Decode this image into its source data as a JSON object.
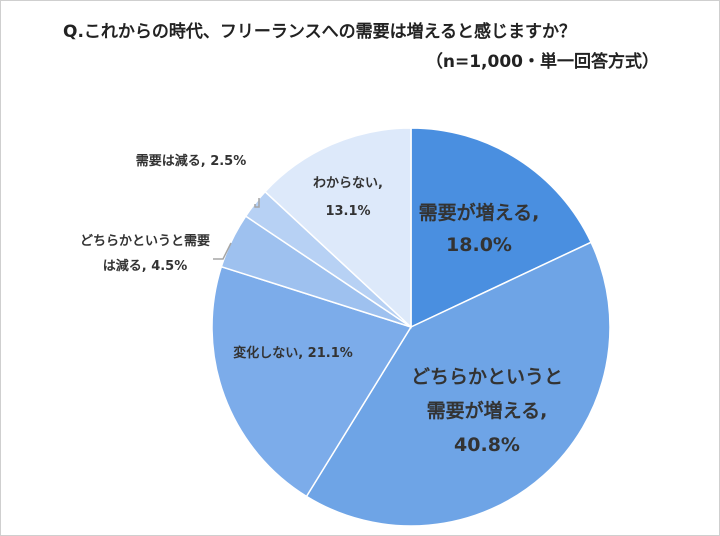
{
  "title": "Q.これからの時代、フリーランスへの需要は増えると感じますか？",
  "subtitle": "（n=1,000・単一回答方式）",
  "chart_data": {
    "type": "pie",
    "title": "Q.これからの時代、フリーランスへの需要は増えると感じますか？",
    "subtitle": "（n=1,000・単一回答方式）",
    "slices": [
      {
        "label": "需要が増える",
        "value": 18.0,
        "color": "#4a8fe0"
      },
      {
        "label": "どちらかというと需要が増える",
        "value": 40.8,
        "color": "#6ea4e6"
      },
      {
        "label": "変化しない",
        "value": 21.1,
        "color": "#7cacea"
      },
      {
        "label": "どちらかというと需要は減る",
        "value": 4.5,
        "color": "#9ec1ef"
      },
      {
        "label": "需要は減る",
        "value": 2.5,
        "color": "#b7d1f4"
      },
      {
        "label": "わからない",
        "value": 13.1,
        "color": "#dde9fa"
      }
    ],
    "data_labels": [
      [
        "需要が増える,",
        "18.0%"
      ],
      [
        "どちらかというと",
        "需要が増える,",
        "40.8%"
      ],
      [
        "変化しない, 21.1%"
      ],
      [
        "どちらかというと需要",
        "は減る, 4.5%"
      ],
      [
        "需要は減る, 2.5%"
      ],
      [
        "わからない,",
        "13.1%"
      ]
    ]
  }
}
